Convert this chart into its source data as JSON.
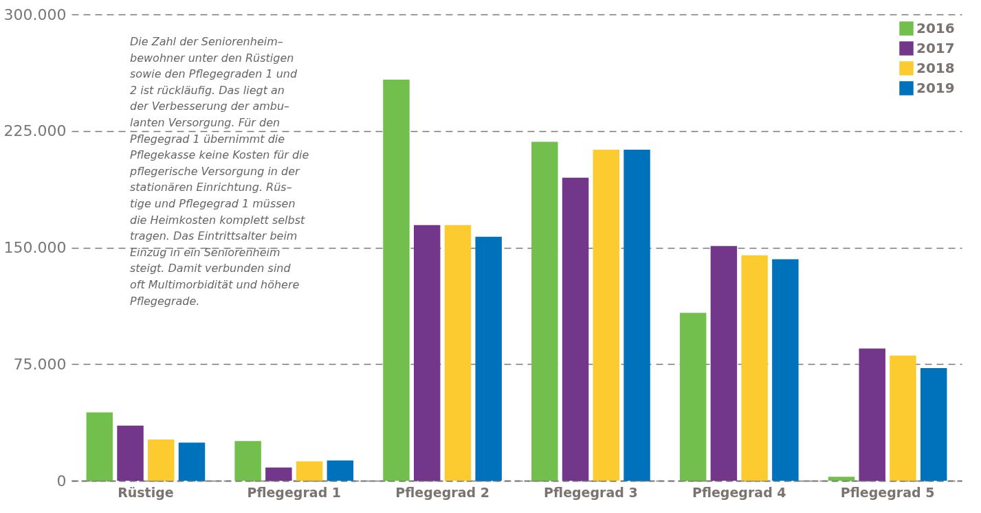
{
  "chart_data": {
    "type": "bar",
    "categories": [
      "Rüstige",
      "Pflegegrad 1",
      "Pflegegrad 2",
      "Pflegegrad 3",
      "Pflegegrad 4",
      "Pflegegrad 5"
    ],
    "series": [
      {
        "name": "2016",
        "color": "#72bf4d",
        "values": [
          44000,
          25500,
          258000,
          218000,
          108000,
          2500
        ]
      },
      {
        "name": "2017",
        "color": "#72368a",
        "values": [
          35500,
          8500,
          164500,
          195000,
          151000,
          85000
        ]
      },
      {
        "name": "2018",
        "color": "#fccb2f",
        "values": [
          26500,
          12500,
          164500,
          213000,
          145000,
          80500
        ]
      },
      {
        "name": "2019",
        "color": "#0072bb",
        "values": [
          24500,
          13000,
          157000,
          213000,
          142500,
          72500
        ]
      }
    ],
    "ylim": [
      0,
      300000
    ],
    "yticks": [
      0,
      {
        "value": 75000,
        "label": "75.000"
      },
      {
        "value": 150000,
        "label": "150.000"
      },
      {
        "value": 225000,
        "label": "225.000"
      },
      {
        "value": 300000,
        "label": "300.000"
      }
    ],
    "grid": "y",
    "legend": "top right",
    "annotations": [
      "Die Zahl der Seniorenheim–\nbewohner unter den Rüstigen\nsowie den Pflegegraden 1 und\n2 ist rückläufig. Das liegt an\nder Verbesserung der ambu–\nlanten Versorgung. Für den\nPflegegrad 1 übernimmt die\nPflegekasse keine Kosten für die\npflegerische Versorgung in der\nstationären Einrichtung. Rüs–\ntige und Pflegegrad 1 müssen\ndie Heimkosten komplett selbst\ntragen. Das Eintrittsalter beim\nEinzug in ein Seniorenheim\nsteigt. Damit verbunden sind\noft Multimorbidität und höhere\nPflegegrade."
    ]
  }
}
